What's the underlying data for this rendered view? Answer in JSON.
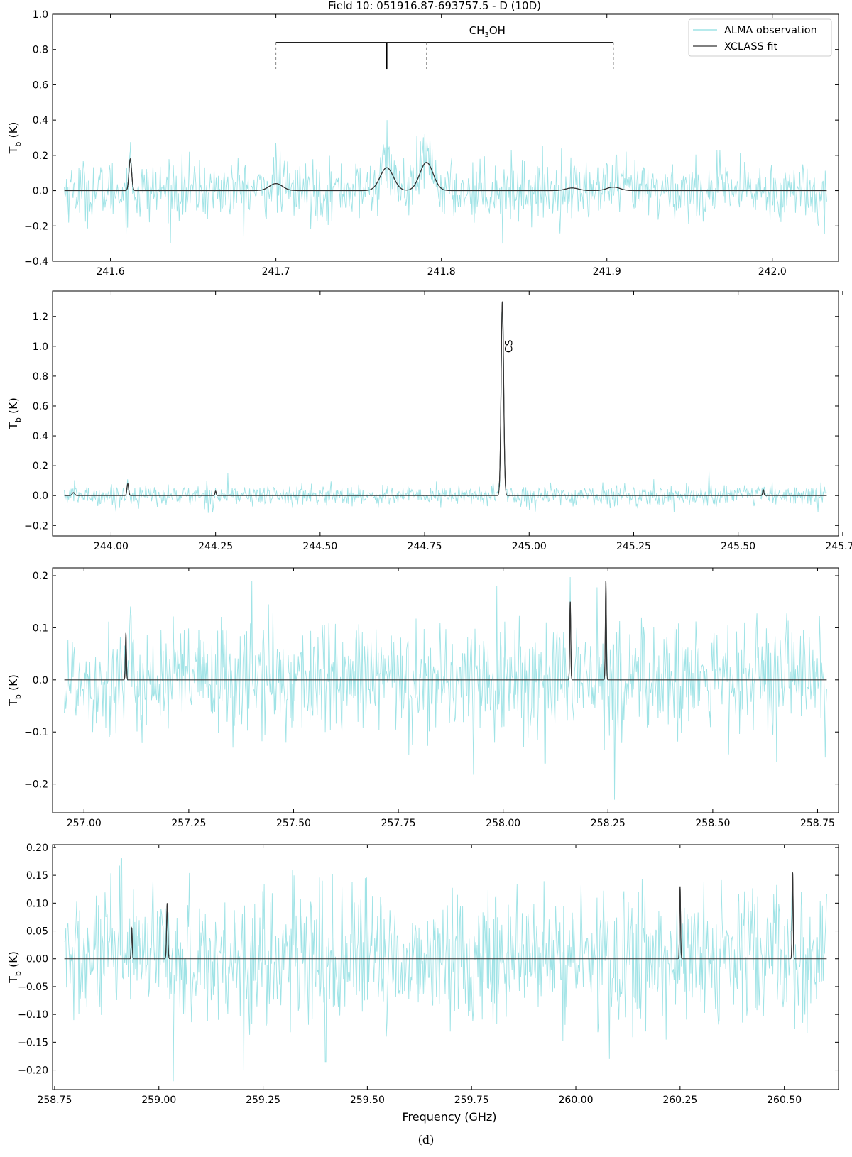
{
  "figure": {
    "title": "Field 10: 051916.87-693757.5 - D (10D)",
    "caption": "(d)",
    "xlabel": "Frequency (GHz)",
    "legend": [
      {
        "label": "ALMA observation",
        "color": "#9fe3e6"
      },
      {
        "label": "XCLASS fit",
        "color": "#555555"
      }
    ],
    "colors": {
      "observation": "#9fe3e6",
      "fit": "#333333",
      "marker": "#000000"
    }
  },
  "chart_data": [
    {
      "type": "line",
      "xlim": [
        241.565,
        242.04
      ],
      "ylim": [
        -0.4,
        1.0
      ],
      "xticks": [
        241.6,
        241.7,
        241.8,
        241.9,
        242.0
      ],
      "xtick_labels": [
        "241.6",
        "241.7",
        "241.8",
        "241.9",
        "242.0"
      ],
      "yticks": [
        -0.4,
        -0.2,
        0.0,
        0.2,
        0.4,
        0.6,
        0.8,
        1.0
      ],
      "ytick_labels": [
        "−0.4",
        "−0.2",
        "0.0",
        "0.2",
        "0.4",
        "0.6",
        "0.8",
        "1.0"
      ],
      "ylabel": "T",
      "ylabel_sub": "b",
      "ylabel_unit": "(K)",
      "noise_sigma": 0.085,
      "fit_peaks": [
        {
          "x": 241.612,
          "y": 0.18,
          "w": 0.0008
        },
        {
          "x": 241.7,
          "y": 0.04,
          "w": 0.004
        },
        {
          "x": 241.767,
          "y": 0.13,
          "w": 0.004
        },
        {
          "x": 241.791,
          "y": 0.16,
          "w": 0.004
        },
        {
          "x": 241.879,
          "y": 0.015,
          "w": 0.004
        },
        {
          "x": 241.904,
          "y": 0.02,
          "w": 0.004
        }
      ],
      "obs_spikes": [
        {
          "x": 241.767,
          "y": 0.4
        },
        {
          "x": 241.79,
          "y": 0.32
        },
        {
          "x": 241.7,
          "y": 0.27
        },
        {
          "x": 241.837,
          "y": -0.3
        }
      ],
      "species_marker": {
        "label": "CH",
        "label_sub": "3",
        "label_tail": "OH",
        "bar_y": 0.84,
        "x_start": 241.7,
        "x_end": 241.904,
        "solid_ticks": [
          241.767
        ],
        "solid_bottom": 0.69,
        "dashed_ticks": [
          241.7,
          241.791,
          241.904
        ],
        "dashed_bottom": 0.69
      }
    },
    {
      "type": "line",
      "xlim": [
        243.86,
        245.74
      ],
      "ylim": [
        -0.27,
        1.37
      ],
      "xticks": [
        244.0,
        244.25,
        244.5,
        244.75,
        245.0,
        245.25,
        245.5,
        245.75
      ],
      "xtick_labels": [
        "244.00",
        "244.25",
        "244.50",
        "244.75",
        "245.00",
        "245.25",
        "245.50",
        "245.75"
      ],
      "yticks": [
        -0.2,
        0.0,
        0.2,
        0.4,
        0.6,
        0.8,
        1.0,
        1.2
      ],
      "ytick_labels": [
        "−0.2",
        "0.0",
        "0.2",
        "0.4",
        "0.6",
        "0.8",
        "1.0",
        "1.2"
      ],
      "ylabel": "T",
      "ylabel_sub": "b",
      "ylabel_unit": "(K)",
      "noise_sigma": 0.035,
      "fit_peaks": [
        {
          "x": 243.91,
          "y": 0.02,
          "w": 0.003
        },
        {
          "x": 244.04,
          "y": 0.08,
          "w": 0.002
        },
        {
          "x": 244.25,
          "y": 0.03,
          "w": 0.0015
        },
        {
          "x": 244.936,
          "y": 1.3,
          "w": 0.003
        },
        {
          "x": 245.56,
          "y": 0.04,
          "w": 0.0015
        }
      ],
      "obs_spikes": [
        {
          "x": 244.936,
          "y": 1.27
        },
        {
          "x": 245.43,
          "y": 0.16
        },
        {
          "x": 244.28,
          "y": 0.15
        }
      ],
      "line_labels": [
        {
          "label": "CS",
          "x": 244.936,
          "y": 1.0
        }
      ]
    },
    {
      "type": "line",
      "xlim": [
        256.925,
        258.8
      ],
      "ylim": [
        -0.255,
        0.215
      ],
      "xticks": [
        257.0,
        257.25,
        257.5,
        257.75,
        258.0,
        258.25,
        258.5,
        258.75
      ],
      "xtick_labels": [
        "257.00",
        "257.25",
        "257.50",
        "257.75",
        "258.00",
        "258.25",
        "258.50",
        "258.75"
      ],
      "yticks": [
        -0.2,
        -0.1,
        0.0,
        0.1,
        0.2
      ],
      "ytick_labels": [
        "−0.2",
        "−0.1",
        "0.0",
        "0.1",
        "0.2"
      ],
      "ylabel": "T",
      "ylabel_sub": "b",
      "ylabel_unit": "(K)",
      "noise_sigma": 0.055,
      "fit_peaks": [
        {
          "x": 257.1,
          "y": 0.09,
          "w": 0.0012
        },
        {
          "x": 258.16,
          "y": 0.15,
          "w": 0.0012
        },
        {
          "x": 258.245,
          "y": 0.19,
          "w": 0.0012
        }
      ],
      "obs_spikes": [
        {
          "x": 257.4,
          "y": 0.19
        },
        {
          "x": 258.265,
          "y": -0.23
        },
        {
          "x": 257.985,
          "y": 0.18
        },
        {
          "x": 258.1,
          "y": -0.16
        }
      ]
    },
    {
      "type": "line",
      "xlim": [
        258.745,
        260.63
      ],
      "ylim": [
        -0.235,
        0.205
      ],
      "xticks": [
        258.75,
        259.0,
        259.25,
        259.5,
        259.75,
        260.0,
        260.25,
        260.5
      ],
      "xtick_labels": [
        "258.75",
        "259.00",
        "259.25",
        "259.50",
        "259.75",
        "260.00",
        "260.25",
        "260.50"
      ],
      "yticks": [
        -0.2,
        -0.15,
        -0.1,
        -0.05,
        0.0,
        0.05,
        0.1,
        0.15,
        0.2
      ],
      "ytick_labels": [
        "−0.20",
        "−0.15",
        "−0.10",
        "−0.05",
        "0.00",
        "0.05",
        "0.10",
        "0.15",
        "0.20"
      ],
      "ylabel": "T",
      "ylabel_sub": "b",
      "ylabel_unit": "(K)",
      "show_xlabel": true,
      "noise_sigma": 0.06,
      "fit_peaks": [
        {
          "x": 258.935,
          "y": 0.055,
          "w": 0.0012
        },
        {
          "x": 259.02,
          "y": 0.1,
          "w": 0.0015
        },
        {
          "x": 260.25,
          "y": 0.13,
          "w": 0.0012
        },
        {
          "x": 260.52,
          "y": 0.155,
          "w": 0.0012
        }
      ],
      "obs_spikes": [
        {
          "x": 258.91,
          "y": 0.18
        },
        {
          "x": 259.035,
          "y": -0.22
        },
        {
          "x": 259.4,
          "y": -0.185
        },
        {
          "x": 260.08,
          "y": -0.18
        }
      ]
    }
  ]
}
